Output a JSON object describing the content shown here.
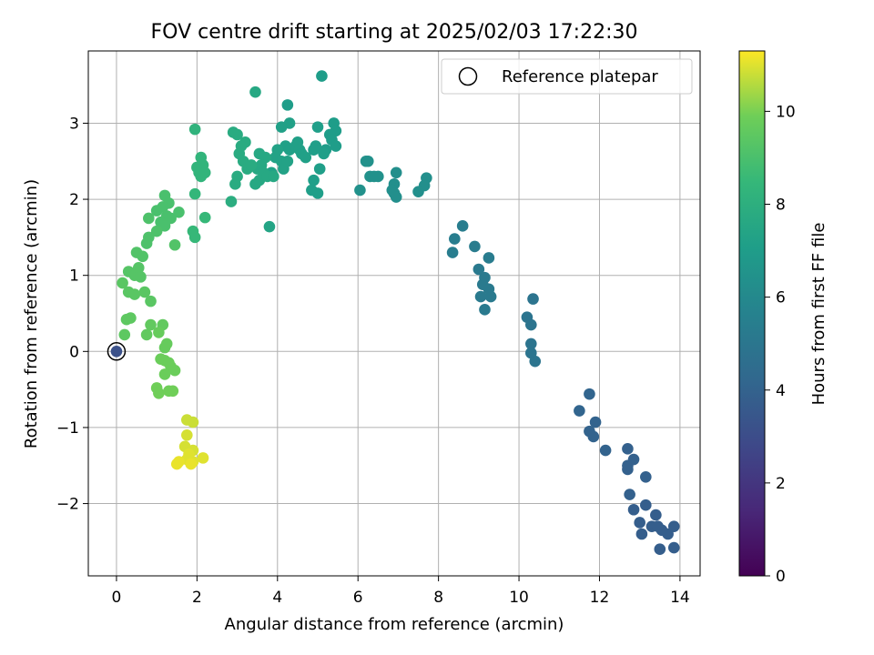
{
  "chart_data": {
    "type": "scatter",
    "title": "FOV centre drift starting at 2025/02/03 17:22:30",
    "xlabel": "Angular distance from reference (arcmin)",
    "ylabel": "Rotation from reference (arcmin)",
    "xlim": [
      -0.7,
      14.5
    ],
    "ylim": [
      -2.95,
      3.95
    ],
    "xticks": [
      0,
      2,
      4,
      6,
      8,
      10,
      12,
      14
    ],
    "yticks": [
      -2,
      -1,
      0,
      1,
      2,
      3
    ],
    "grid": true,
    "legend": {
      "position": "top-right",
      "entries": [
        "Reference platepar"
      ]
    },
    "colorbar": {
      "label": "Hours from first FF file",
      "min": 0,
      "max": 11.3,
      "ticks": [
        0,
        2,
        4,
        6,
        8,
        10
      ],
      "colormap": "viridis"
    },
    "reference_point": {
      "x": 0,
      "y": 0,
      "hours": 3.2
    },
    "points": [
      [
        13.5,
        -2.6,
        3.8
      ],
      [
        13.85,
        -2.58,
        3.8
      ],
      [
        13.05,
        -2.4,
        3.8
      ],
      [
        13.7,
        -2.4,
        3.8
      ],
      [
        13.55,
        -2.35,
        3.8
      ],
      [
        13.85,
        -2.3,
        3.8
      ],
      [
        13.3,
        -2.3,
        3.8
      ],
      [
        13.45,
        -2.3,
        3.8
      ],
      [
        13.0,
        -2.25,
        3.8
      ],
      [
        13.4,
        -2.15,
        3.8
      ],
      [
        12.85,
        -2.08,
        3.8
      ],
      [
        13.15,
        -2.02,
        3.8
      ],
      [
        12.75,
        -1.88,
        3.9
      ],
      [
        13.15,
        -1.65,
        3.9
      ],
      [
        12.7,
        -1.55,
        3.9
      ],
      [
        12.7,
        -1.5,
        3.9
      ],
      [
        12.85,
        -1.42,
        3.9
      ],
      [
        12.7,
        -1.28,
        3.9
      ],
      [
        12.15,
        -1.3,
        4.0
      ],
      [
        11.85,
        -1.12,
        4.0
      ],
      [
        11.75,
        -1.05,
        4.0
      ],
      [
        11.9,
        -0.93,
        4.0
      ],
      [
        11.5,
        -0.78,
        4.1
      ],
      [
        11.75,
        -0.56,
        4.1
      ],
      [
        10.4,
        -0.13,
        4.9
      ],
      [
        10.3,
        -0.02,
        4.9
      ],
      [
        10.3,
        0.1,
        4.9
      ],
      [
        10.3,
        0.35,
        4.9
      ],
      [
        10.2,
        0.45,
        4.9
      ],
      [
        10.35,
        0.69,
        4.9
      ],
      [
        9.15,
        0.55,
        5.2
      ],
      [
        9.05,
        0.72,
        5.2
      ],
      [
        9.3,
        0.72,
        5.2
      ],
      [
        9.1,
        0.88,
        5.2
      ],
      [
        9.25,
        0.82,
        5.2
      ],
      [
        9.15,
        0.97,
        5.2
      ],
      [
        9.0,
        1.08,
        5.2
      ],
      [
        9.25,
        1.23,
        5.3
      ],
      [
        8.9,
        1.38,
        5.3
      ],
      [
        8.35,
        1.3,
        5.4
      ],
      [
        8.4,
        1.48,
        5.4
      ],
      [
        8.6,
        1.65,
        5.4
      ],
      [
        7.7,
        2.28,
        6.3
      ],
      [
        7.65,
        2.18,
        6.3
      ],
      [
        7.5,
        2.1,
        6.3
      ],
      [
        6.95,
        2.35,
        6.3
      ],
      [
        6.9,
        2.2,
        6.3
      ],
      [
        6.85,
        2.12,
        6.3
      ],
      [
        6.9,
        2.08,
        6.3
      ],
      [
        6.95,
        2.03,
        6.3
      ],
      [
        6.2,
        2.5,
        6.4
      ],
      [
        6.25,
        2.5,
        6.4
      ],
      [
        6.3,
        2.3,
        6.4
      ],
      [
        6.4,
        2.3,
        6.4
      ],
      [
        6.5,
        2.3,
        6.4
      ],
      [
        6.05,
        2.12,
        6.4
      ],
      [
        5.1,
        3.62,
        7.0
      ],
      [
        4.25,
        3.24,
        7.0
      ],
      [
        5.4,
        3.0,
        7.0
      ],
      [
        5.45,
        2.9,
        7.0
      ],
      [
        5.3,
        2.85,
        7.0
      ],
      [
        5.35,
        2.78,
        7.0
      ],
      [
        5.45,
        2.7,
        7.0
      ],
      [
        5.2,
        2.65,
        7.0
      ],
      [
        5.0,
        2.95,
        7.1
      ],
      [
        4.95,
        2.7,
        7.1
      ],
      [
        4.9,
        2.65,
        7.1
      ],
      [
        5.15,
        2.6,
        7.1
      ],
      [
        5.05,
        2.4,
        7.1
      ],
      [
        4.9,
        2.25,
        7.1
      ],
      [
        4.85,
        2.12,
        7.1
      ],
      [
        5.0,
        2.08,
        7.1
      ],
      [
        4.3,
        3.0,
        7.2
      ],
      [
        4.1,
        2.95,
        7.2
      ],
      [
        4.2,
        2.7,
        7.2
      ],
      [
        4.3,
        2.65,
        7.2
      ],
      [
        4.45,
        2.7,
        7.2
      ],
      [
        4.5,
        2.75,
        7.2
      ],
      [
        4.55,
        2.65,
        7.2
      ],
      [
        4.6,
        2.6,
        7.2
      ],
      [
        4.7,
        2.55,
        7.2
      ],
      [
        4.0,
        2.65,
        7.3
      ],
      [
        3.95,
        2.55,
        7.3
      ],
      [
        4.1,
        2.5,
        7.3
      ],
      [
        4.15,
        2.4,
        7.3
      ],
      [
        4.25,
        2.5,
        7.3
      ],
      [
        3.85,
        2.35,
        7.3
      ],
      [
        3.8,
        1.64,
        7.4
      ],
      [
        3.45,
        3.41,
        7.6
      ],
      [
        3.55,
        2.6,
        7.6
      ],
      [
        3.7,
        2.55,
        7.6
      ],
      [
        3.6,
        2.45,
        7.6
      ],
      [
        3.5,
        2.4,
        7.6
      ],
      [
        3.65,
        2.35,
        7.6
      ],
      [
        3.55,
        2.25,
        7.6
      ],
      [
        3.45,
        2.2,
        7.6
      ],
      [
        3.75,
        2.3,
        7.6
      ],
      [
        3.9,
        2.3,
        7.6
      ],
      [
        3.2,
        2.75,
        7.8
      ],
      [
        3.1,
        2.7,
        7.8
      ],
      [
        3.05,
        2.6,
        7.8
      ],
      [
        3.0,
        2.85,
        7.8
      ],
      [
        2.9,
        2.88,
        7.8
      ],
      [
        3.15,
        2.5,
        7.8
      ],
      [
        3.25,
        2.4,
        7.8
      ],
      [
        3.35,
        2.45,
        7.8
      ],
      [
        3.0,
        2.3,
        7.8
      ],
      [
        2.95,
        2.2,
        7.8
      ],
      [
        2.85,
        1.97,
        7.9
      ],
      [
        1.95,
        2.92,
        8.2
      ],
      [
        2.1,
        2.55,
        8.3
      ],
      [
        2.15,
        2.45,
        8.3
      ],
      [
        2.0,
        2.42,
        8.3
      ],
      [
        2.05,
        2.35,
        8.3
      ],
      [
        2.1,
        2.3,
        8.3
      ],
      [
        2.2,
        2.35,
        8.3
      ],
      [
        1.95,
        2.07,
        8.4
      ],
      [
        2.2,
        1.76,
        8.5
      ],
      [
        1.9,
        1.58,
        8.5
      ],
      [
        1.95,
        1.5,
        8.5
      ],
      [
        1.2,
        2.05,
        9.0
      ],
      [
        1.3,
        1.95,
        9.0
      ],
      [
        1.15,
        1.9,
        9.0
      ],
      [
        1.0,
        1.85,
        9.0
      ],
      [
        1.25,
        1.78,
        9.0
      ],
      [
        1.35,
        1.75,
        9.0
      ],
      [
        1.55,
        1.83,
        9.0
      ],
      [
        1.1,
        1.7,
        9.0
      ],
      [
        1.2,
        1.65,
        9.0
      ],
      [
        0.8,
        1.75,
        9.1
      ],
      [
        1.0,
        1.58,
        9.1
      ],
      [
        0.8,
        1.5,
        9.1
      ],
      [
        0.75,
        1.42,
        9.1
      ],
      [
        0.5,
        1.3,
        9.2
      ],
      [
        0.65,
        1.25,
        9.2
      ],
      [
        1.45,
        1.4,
        9.2
      ],
      [
        0.3,
        1.05,
        9.3
      ],
      [
        0.45,
        1.0,
        9.3
      ],
      [
        0.55,
        1.1,
        9.3
      ],
      [
        0.6,
        0.98,
        9.3
      ],
      [
        0.15,
        0.9,
        9.4
      ],
      [
        0.3,
        0.78,
        9.4
      ],
      [
        0.45,
        0.75,
        9.4
      ],
      [
        0.7,
        0.78,
        9.4
      ],
      [
        0.85,
        0.66,
        9.4
      ],
      [
        0.25,
        0.42,
        9.5
      ],
      [
        0.35,
        0.44,
        9.5
      ],
      [
        0.2,
        0.22,
        9.5
      ],
      [
        0.85,
        0.35,
        9.6
      ],
      [
        0.75,
        0.22,
        9.6
      ],
      [
        1.15,
        0.35,
        9.6
      ],
      [
        1.05,
        0.25,
        9.7
      ],
      [
        1.25,
        0.1,
        9.7
      ],
      [
        1.2,
        0.05,
        9.7
      ],
      [
        1.1,
        -0.1,
        9.8
      ],
      [
        1.2,
        -0.12,
        9.8
      ],
      [
        1.3,
        -0.15,
        9.8
      ],
      [
        1.35,
        -0.2,
        9.8
      ],
      [
        1.45,
        -0.25,
        9.8
      ],
      [
        1.2,
        -0.3,
        9.8
      ],
      [
        1.0,
        -0.48,
        9.9
      ],
      [
        1.05,
        -0.55,
        9.9
      ],
      [
        1.3,
        -0.52,
        9.9
      ],
      [
        1.4,
        -0.52,
        9.9
      ],
      [
        1.75,
        -0.9,
        10.8
      ],
      [
        1.9,
        -0.93,
        10.8
      ],
      [
        1.75,
        -1.1,
        10.9
      ],
      [
        1.7,
        -1.25,
        10.9
      ],
      [
        1.9,
        -1.3,
        10.9
      ],
      [
        1.8,
        -1.35,
        11.0
      ],
      [
        1.75,
        -1.42,
        11.0
      ],
      [
        1.9,
        -1.45,
        11.0
      ],
      [
        2.15,
        -1.4,
        11.0
      ],
      [
        1.55,
        -1.45,
        11.1
      ],
      [
        1.5,
        -1.48,
        11.1
      ],
      [
        1.85,
        -1.48,
        11.1
      ]
    ]
  }
}
